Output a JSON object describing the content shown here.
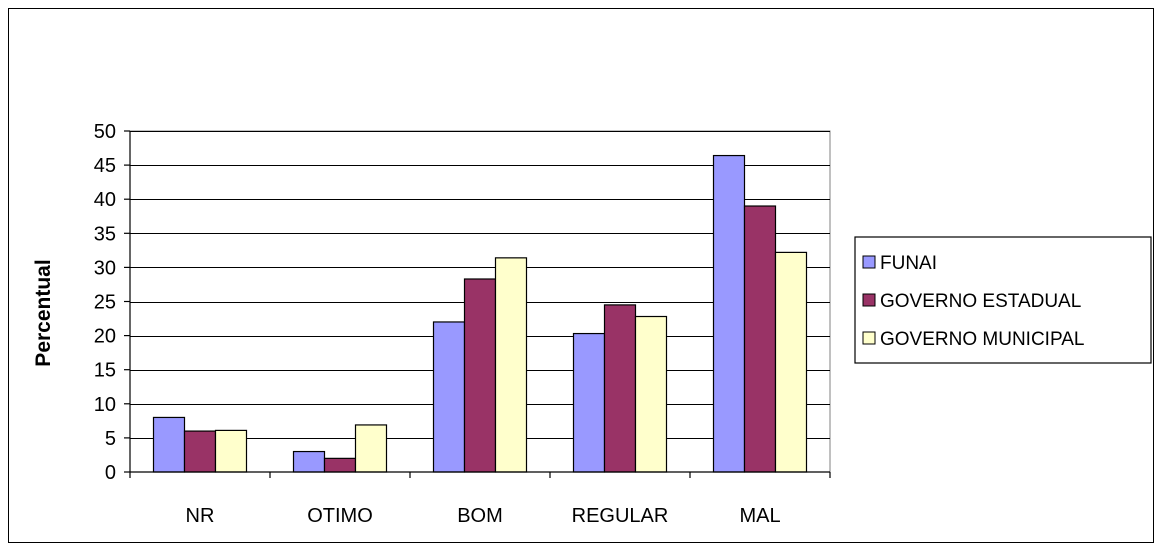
{
  "chart_data": {
    "type": "bar",
    "categories": [
      "NR",
      "OTIMO",
      "BOM",
      "REGULAR",
      "MAL"
    ],
    "series": [
      {
        "name": "FUNAI",
        "values": [
          8,
          3,
          22,
          20.3,
          46.4
        ],
        "color": "#9999ff"
      },
      {
        "name": "GOVERNO ESTADUAL",
        "values": [
          6,
          2,
          28.3,
          24.5,
          39
        ],
        "color": "#993366"
      },
      {
        "name": "GOVERNO MUNICIPAL",
        "values": [
          6.1,
          6.9,
          31.4,
          22.8,
          32.2
        ],
        "color": "#ffffcc"
      }
    ],
    "title": "",
    "xlabel": "",
    "ylabel": "Percentual",
    "ylim": [
      0,
      50
    ],
    "yticks": [
      0,
      5,
      10,
      15,
      20,
      25,
      30,
      35,
      40,
      45,
      50
    ],
    "grid": true,
    "legend_position": "right"
  }
}
